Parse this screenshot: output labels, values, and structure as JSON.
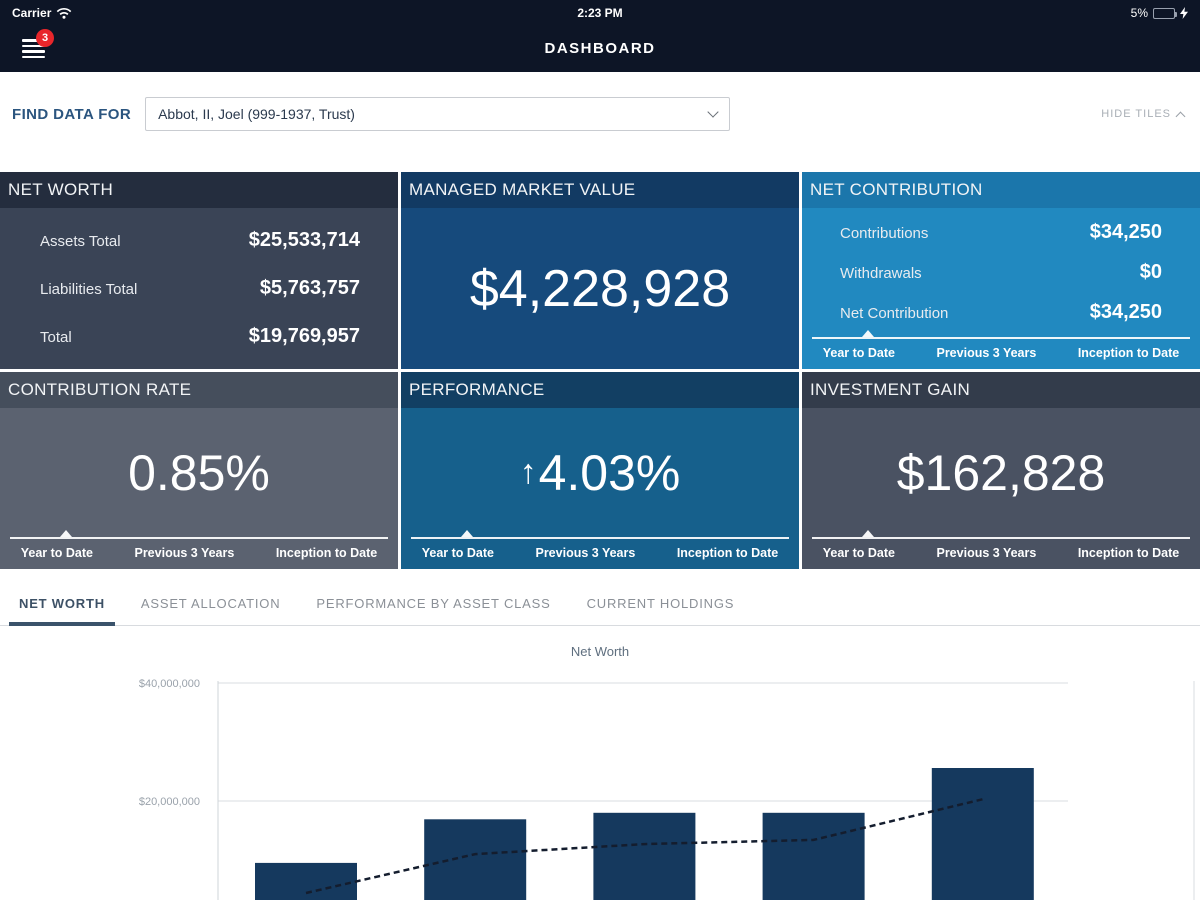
{
  "status_bar": {
    "carrier": "Carrier",
    "time": "2:23 PM",
    "battery_percent": "5%"
  },
  "nav": {
    "title": "DASHBOARD",
    "menu_badge": "3"
  },
  "find_data": {
    "label": "FIND DATA FOR",
    "selected": "Abbot, II, Joel (999-1937, Trust)",
    "hide_tiles_label": "HIDE TILES"
  },
  "period_tabs": [
    "Year to Date",
    "Previous 3 Years",
    "Inception to Date"
  ],
  "active_period": "Year to Date",
  "tiles": {
    "net_worth": {
      "title": "NET WORTH",
      "rows": [
        {
          "label": "Assets Total",
          "value": "$25,533,714"
        },
        {
          "label": "Liabilities Total",
          "value": "$5,763,757"
        },
        {
          "label": "Total",
          "value": "$19,769,957"
        }
      ]
    },
    "managed_market_value": {
      "title": "MANAGED MARKET VALUE",
      "value": "$4,228,928"
    },
    "net_contribution": {
      "title": "NET CONTRIBUTION",
      "rows": [
        {
          "label": "Contributions",
          "value": "$34,250"
        },
        {
          "label": "Withdrawals",
          "value": "$0"
        },
        {
          "label": "Net Contribution",
          "value": "$34,250"
        }
      ]
    },
    "contribution_rate": {
      "title": "CONTRIBUTION RATE",
      "value": "0.85%"
    },
    "performance": {
      "title": "PERFORMANCE",
      "arrow": "↑",
      "value": "4.03%"
    },
    "investment_gain": {
      "title": "INVESTMENT GAIN",
      "value": "$162,828"
    }
  },
  "section_tabs": {
    "items": [
      {
        "label": "NET WORTH",
        "active": true
      },
      {
        "label": "ASSET ALLOCATION",
        "active": false
      },
      {
        "label": "PERFORMANCE BY ASSET CLASS",
        "active": false
      },
      {
        "label": "CURRENT HOLDINGS",
        "active": false
      }
    ]
  },
  "chart_data": {
    "type": "bar",
    "title": "Net Worth",
    "ylabel": "",
    "xlabel": "",
    "ylim": [
      0,
      40000000
    ],
    "grid": true,
    "categories_visible": false,
    "yticks": [
      {
        "label": "$40,000,000",
        "value": 40000000
      },
      {
        "label": "$20,000,000",
        "value": 20000000
      }
    ],
    "series": [
      {
        "name": "net-worth-bars",
        "type": "bar",
        "values": [
          9500000,
          16900000,
          18000000,
          18000000,
          25600000
        ]
      },
      {
        "name": "trend-line",
        "type": "line",
        "values": [
          4400000,
          11000000,
          12700000,
          13400000,
          20300000
        ]
      }
    ]
  },
  "colors": {
    "topbar_bg": "#0d1526",
    "badge_red": "#e8262b",
    "find_label": "#2b557f",
    "hide_tiles": "#a9afb6",
    "tile_networth_header": "#242d3e",
    "tile_networth_body": "#3a4456",
    "tile_mmv_header": "#123a63",
    "tile_mmv_body": "#164a7c",
    "tile_netcontrib_header": "#1b76ab",
    "tile_netcontrib_body": "#2189c0",
    "tile_contribrate_header": "#454e5c",
    "tile_contribrate_body": "#5b6270",
    "tile_perf_header": "#123f63",
    "tile_perf_body": "#16608c",
    "tile_gain_header": "#333c4b",
    "tile_gain_body": "#4a5262",
    "tab_active": "#3d5166",
    "tab_inactive": "#8b9097",
    "bar_fill": "#15395e",
    "line_stroke": "#141d2e",
    "grid": "#d9dde1",
    "axis_label": "#9aa2ab",
    "chart_title": "#5f6f7f"
  }
}
